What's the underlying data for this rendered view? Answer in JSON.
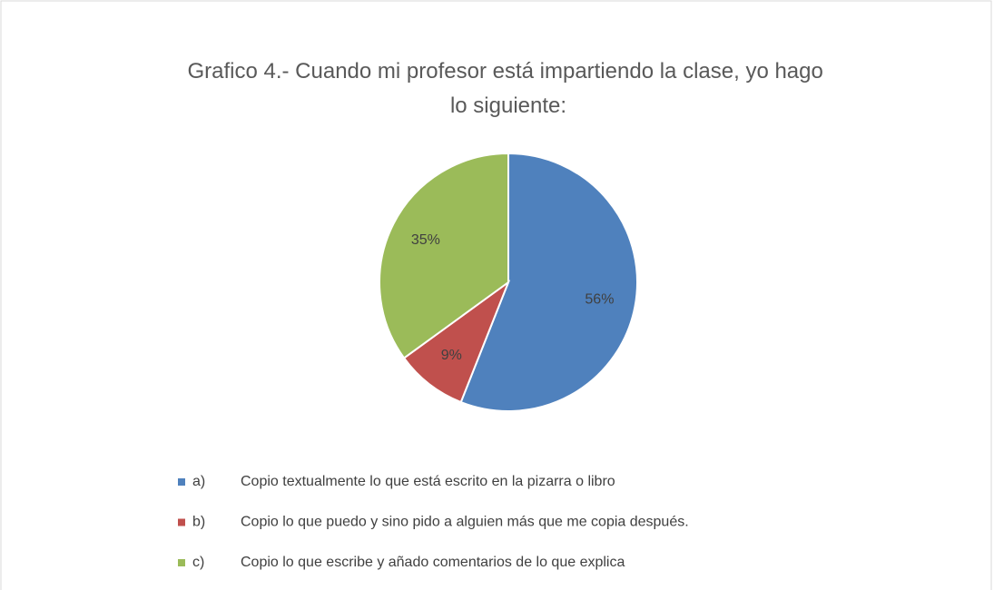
{
  "chart_data": {
    "type": "pie",
    "title": "Grafico 4.- Cuando mi profesor está impartiendo la clase, yo hago lo siguiente:",
    "categories": [
      "a) Copio textualmente lo que está escrito en la pizarra o libro",
      "b) Copio lo que puedo y sino pido a alguien más que me copia después.",
      "c) Copio lo que escribe y añado comentarios de lo que explica"
    ],
    "values": [
      56,
      9,
      35
    ],
    "value_labels": [
      "56%",
      "9%",
      "35%"
    ],
    "colors": [
      "#4f81bd",
      "#c0504d",
      "#9bbb59"
    ],
    "legend": "bottom"
  }
}
